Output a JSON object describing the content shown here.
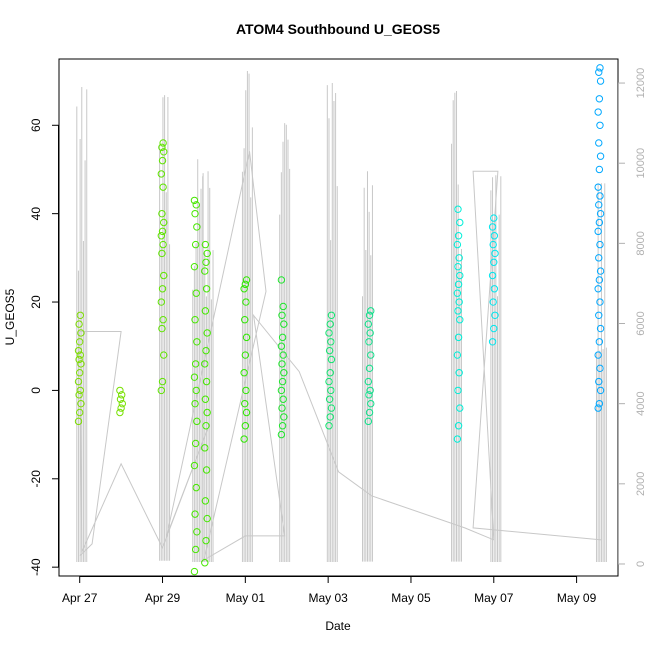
{
  "chart_data": {
    "type": "scatter",
    "title": "ATOM4 Southbound U_GEOS5",
    "xlabel": "Date",
    "ylabel": "U_GEOS5",
    "x_ticks": [
      "Apr 27",
      "Apr 29",
      "May 01",
      "May 03",
      "May 05",
      "May 07",
      "May 09"
    ],
    "x_tick_days": [
      0,
      2,
      4,
      6,
      8,
      10,
      12
    ],
    "x_range_days": [
      -0.5,
      13.0
    ],
    "y_ticks": [
      -40,
      -20,
      0,
      20,
      40,
      60
    ],
    "ylim": [
      -42,
      75
    ],
    "y2_ticks": [
      0,
      2000,
      4000,
      6000,
      8000,
      10000,
      12000
    ],
    "y2lim": [
      -300,
      12600
    ],
    "colors": {
      "axis": "#000000",
      "secondary": "#b0b0b0",
      "track": "#c8c8c8"
    },
    "scatter_groups": [
      {
        "x": 0.0,
        "y": [
          -7,
          -5,
          -3,
          -1,
          0,
          2,
          4,
          6,
          7,
          8,
          9,
          11,
          13,
          15,
          17
        ],
        "color": "#7ddd00"
      },
      {
        "x": 1.0,
        "y": [
          -5,
          -4,
          -3,
          -2,
          -1,
          0
        ],
        "color": "#77e000"
      },
      {
        "x": 2.0,
        "y": [
          0,
          2,
          8,
          14,
          16,
          20,
          23,
          26,
          31,
          33,
          35,
          36,
          38,
          40,
          46,
          49,
          52,
          54,
          55,
          56
        ],
        "color": "#5fe400"
      },
      {
        "x": 2.8,
        "y": [
          -41,
          -36,
          -32,
          -28,
          -22,
          -17,
          -12,
          -7,
          -3,
          0,
          3,
          6,
          11,
          16,
          22,
          28,
          33,
          37,
          40,
          42,
          43
        ],
        "color": "#47e700"
      },
      {
        "x": 3.05,
        "y": [
          -39,
          -34,
          -29,
          -25,
          -18,
          -13,
          -8,
          -5,
          -2,
          2,
          6,
          9,
          13,
          18,
          23,
          27,
          29,
          31,
          33
        ],
        "color": "#45e800"
      },
      {
        "x": 4.0,
        "y": [
          -11,
          -8,
          -5,
          -3,
          0,
          4,
          8,
          12,
          16,
          20,
          23,
          24,
          25
        ],
        "color": "#2fe700"
      },
      {
        "x": 4.9,
        "y": [
          -10,
          -8,
          -6,
          -4,
          -2,
          0,
          2,
          4,
          6,
          8,
          10,
          12,
          15,
          17,
          19,
          25
        ],
        "color": "#1ee62c"
      },
      {
        "x": 6.05,
        "y": [
          -8,
          -6,
          -4,
          -2,
          0,
          2,
          4,
          7,
          9,
          11,
          13,
          15,
          17
        ],
        "color": "#12e36f"
      },
      {
        "x": 7.0,
        "y": [
          -7,
          -5,
          -3,
          -1,
          0,
          2,
          5,
          8,
          11,
          13,
          15,
          17,
          18
        ],
        "color": "#10e08b"
      },
      {
        "x": 9.15,
        "y": [
          -11,
          -8,
          -4,
          0,
          4,
          8,
          12,
          16,
          18,
          20,
          22,
          24,
          26,
          28,
          30,
          33,
          35,
          38,
          41
        ],
        "color": "#00eed8"
      },
      {
        "x": 10.0,
        "y": [
          11,
          14,
          17,
          20,
          23,
          26,
          29,
          31,
          33,
          35,
          37,
          39
        ],
        "color": "#00e6ee"
      },
      {
        "x": 12.55,
        "y": [
          -4,
          -3,
          0,
          2,
          5,
          8,
          11,
          14,
          17,
          20,
          23,
          25,
          27,
          30,
          33,
          36,
          38,
          40,
          42,
          44,
          46,
          50,
          53,
          56,
          60,
          63,
          66,
          70,
          72,
          73
        ],
        "color": "#00a8ff"
      }
    ],
    "altitude_spikes": [
      {
        "x": 0.05,
        "low": 50,
        "high": 11900
      },
      {
        "x": 2.05,
        "low": 80,
        "high": 11700
      },
      {
        "x": 2.85,
        "low": 50,
        "high": 10100
      },
      {
        "x": 3.1,
        "low": 50,
        "high": 9800
      },
      {
        "x": 4.05,
        "low": 50,
        "high": 12300
      },
      {
        "x": 4.95,
        "low": 50,
        "high": 11000
      },
      {
        "x": 6.1,
        "low": 50,
        "high": 12000
      },
      {
        "x": 6.95,
        "low": 60,
        "high": 9800
      },
      {
        "x": 9.1,
        "low": 60,
        "high": 11800
      },
      {
        "x": 10.05,
        "low": 50,
        "high": 9700
      },
      {
        "x": 12.6,
        "low": 50,
        "high": 9500
      }
    ],
    "altitude_track": [
      {
        "x": 0.0,
        "y": 200
      },
      {
        "x": 0.3,
        "y": 500
      },
      {
        "x": 1.0,
        "y": 5800
      },
      {
        "x": 0.0,
        "y": 5800
      },
      {
        "x": 0.05,
        "y": 300
      },
      {
        "x": 1.0,
        "y": 2500
      },
      {
        "x": 2.0,
        "y": 400
      },
      {
        "x": 3.1,
        "y": 3400
      },
      {
        "x": 2.1,
        "y": 700
      },
      {
        "x": 4.1,
        "y": 10300
      },
      {
        "x": 4.5,
        "y": 6800
      },
      {
        "x": 3.0,
        "y": 100
      },
      {
        "x": 4.0,
        "y": 700
      },
      {
        "x": 4.95,
        "y": 700
      },
      {
        "x": 4.2,
        "y": 6200
      },
      {
        "x": 5.3,
        "y": 4800
      },
      {
        "x": 6.25,
        "y": 2300
      },
      {
        "x": 7.05,
        "y": 1700
      },
      {
        "x": 9.3,
        "y": 900
      },
      {
        "x": 10.0,
        "y": 600
      },
      {
        "x": 9.5,
        "y": 9800
      },
      {
        "x": 10.1,
        "y": 9800
      },
      {
        "x": 9.5,
        "y": 900
      },
      {
        "x": 12.6,
        "y": 600
      }
    ]
  }
}
